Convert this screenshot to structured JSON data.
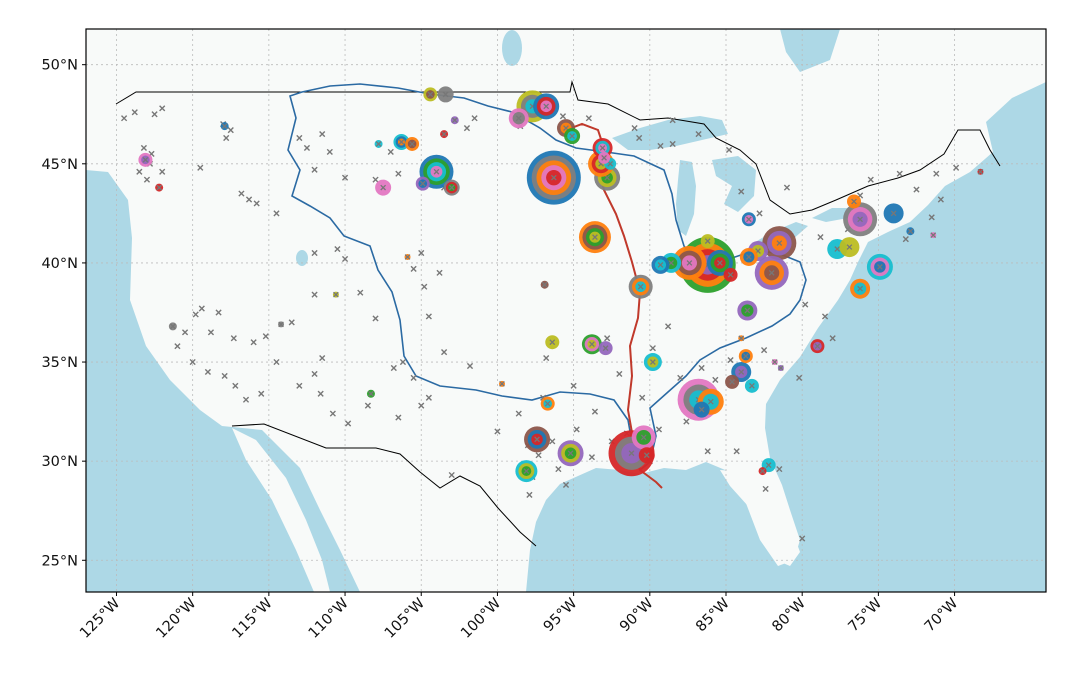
{
  "chart_data": {
    "type": "scatter",
    "title": "",
    "xlabel": "",
    "ylabel": "",
    "projection": "plate-carree",
    "xlim": [
      -127.0,
      -64.0
    ],
    "ylim": [
      23.4,
      51.8
    ],
    "grid": true,
    "x_ticks": [
      {
        "value": -125,
        "label": "125°W"
      },
      {
        "value": -120,
        "label": "120°W"
      },
      {
        "value": -115,
        "label": "115°W"
      },
      {
        "value": -110,
        "label": "110°W"
      },
      {
        "value": -105,
        "label": "105°W"
      },
      {
        "value": -100,
        "label": "100°W"
      },
      {
        "value": -95,
        "label": "95°W"
      },
      {
        "value": -90,
        "label": "90°W"
      },
      {
        "value": -85,
        "label": "85°W"
      },
      {
        "value": -80,
        "label": "80°W"
      },
      {
        "value": -75,
        "label": "75°W"
      },
      {
        "value": -70,
        "label": "70°W"
      }
    ],
    "y_ticks": [
      {
        "value": 50,
        "label": "50°N"
      },
      {
        "value": 45,
        "label": "45°N"
      },
      {
        "value": 40,
        "label": "40°N"
      },
      {
        "value": 35,
        "label": "35°N"
      },
      {
        "value": 30,
        "label": "30°N"
      },
      {
        "value": 25,
        "label": "25°N"
      }
    ],
    "colors": {
      "water": "#add8e6",
      "land": "#f8faf9",
      "basin_outline": "#2b6aa3",
      "river": "#c0392b",
      "border": "#000000",
      "grid": "#bbbbbb",
      "marker_x": "#777777",
      "palette": [
        "#1f77b4",
        "#ff7f0e",
        "#2ca02c",
        "#d62728",
        "#9467bd",
        "#8c564b",
        "#e377c2",
        "#7f7f7f",
        "#bcbd22",
        "#17becf"
      ]
    },
    "x_markers": [
      [
        -124.5,
        47.3
      ],
      [
        -123.8,
        47.6
      ],
      [
        -122.5,
        47.5
      ],
      [
        -122.0,
        47.8
      ],
      [
        -123.2,
        45.8
      ],
      [
        -122.7,
        45.5
      ],
      [
        -122.8,
        45.0
      ],
      [
        -123.5,
        44.6
      ],
      [
        -123.0,
        44.2
      ],
      [
        -122.0,
        44.6
      ],
      [
        -118.0,
        47.0
      ],
      [
        -117.5,
        46.7
      ],
      [
        -117.8,
        46.3
      ],
      [
        -119.5,
        44.8
      ],
      [
        -116.8,
        43.5
      ],
      [
        -116.3,
        43.2
      ],
      [
        -115.8,
        43.0
      ],
      [
        -114.5,
        42.5
      ],
      [
        -113.0,
        46.3
      ],
      [
        -112.5,
        45.8
      ],
      [
        -111.5,
        46.5
      ],
      [
        -111.0,
        45.6
      ],
      [
        -112.0,
        44.7
      ],
      [
        -110.0,
        44.3
      ],
      [
        -108.0,
        44.2
      ],
      [
        -107.0,
        45.6
      ],
      [
        -106.5,
        44.5
      ],
      [
        -104.5,
        44.2
      ],
      [
        -103.5,
        43.8
      ],
      [
        -102.0,
        46.8
      ],
      [
        -101.5,
        47.3
      ],
      [
        -98.5,
        46.9
      ],
      [
        -95.7,
        47.4
      ],
      [
        -94.0,
        47.3
      ],
      [
        -91.0,
        46.8
      ],
      [
        -88.5,
        47.2
      ],
      [
        -86.8,
        46.5
      ],
      [
        -89.3,
        45.9
      ],
      [
        -90.7,
        46.3
      ],
      [
        -88.5,
        46.0
      ],
      [
        -110.5,
        40.7
      ],
      [
        -110.0,
        40.2
      ],
      [
        -109.0,
        38.5
      ],
      [
        -108.0,
        37.2
      ],
      [
        -105.5,
        39.7
      ],
      [
        -104.8,
        38.8
      ],
      [
        -104.5,
        37.3
      ],
      [
        -105.0,
        40.5
      ],
      [
        -103.8,
        39.5
      ],
      [
        -112.0,
        40.5
      ],
      [
        -113.5,
        37.0
      ],
      [
        -112.0,
        38.4
      ],
      [
        -111.5,
        35.2
      ],
      [
        -112.0,
        34.4
      ],
      [
        -111.6,
        33.4
      ],
      [
        -110.8,
        32.4
      ],
      [
        -109.8,
        31.9
      ],
      [
        -108.5,
        32.8
      ],
      [
        -106.5,
        32.2
      ],
      [
        -105.0,
        32.8
      ],
      [
        -106.2,
        35.0
      ],
      [
        -105.5,
        34.2
      ],
      [
        -106.8,
        34.7
      ],
      [
        -104.5,
        33.2
      ],
      [
        -103.5,
        35.5
      ],
      [
        -119.8,
        37.4
      ],
      [
        -119.4,
        37.7
      ],
      [
        -118.3,
        37.5
      ],
      [
        -118.8,
        36.5
      ],
      [
        -117.3,
        36.2
      ],
      [
        -116.0,
        36.0
      ],
      [
        -115.2,
        36.3
      ],
      [
        -120.5,
        36.5
      ],
      [
        -121.0,
        35.8
      ],
      [
        -120.0,
        35.0
      ],
      [
        -119.0,
        34.5
      ],
      [
        -117.9,
        34.3
      ],
      [
        -117.2,
        33.8
      ],
      [
        -116.5,
        33.1
      ],
      [
        -115.5,
        33.4
      ],
      [
        -114.5,
        35.0
      ],
      [
        -113.0,
        33.8
      ],
      [
        -98.6,
        32.4
      ],
      [
        -97.0,
        33.2
      ],
      [
        -96.8,
        35.2
      ],
      [
        -95.0,
        33.8
      ],
      [
        -93.6,
        32.5
      ],
      [
        -91.5,
        31.4
      ],
      [
        -96.0,
        29.6
      ],
      [
        -95.5,
        28.8
      ],
      [
        -97.3,
        30.3
      ],
      [
        -98.0,
        30.8
      ],
      [
        -101.8,
        34.8
      ],
      [
        -103.0,
        29.3
      ],
      [
        -100.0,
        31.5
      ],
      [
        -88.8,
        36.8
      ],
      [
        -89.8,
        35.7
      ],
      [
        -90.5,
        33.2
      ],
      [
        -92.0,
        34.4
      ],
      [
        -92.8,
        36.2
      ],
      [
        -84.8,
        45.7
      ],
      [
        -84.0,
        43.6
      ],
      [
        -82.8,
        42.5
      ],
      [
        -81.0,
        43.8
      ],
      [
        -76.2,
        43.4
      ],
      [
        -75.5,
        44.2
      ],
      [
        -73.6,
        44.5
      ],
      [
        -72.5,
        43.7
      ],
      [
        -71.2,
        44.5
      ],
      [
        -69.9,
        44.8
      ],
      [
        -70.9,
        43.2
      ],
      [
        -71.5,
        42.3
      ],
      [
        -73.2,
        41.2
      ],
      [
        -77.0,
        41.7
      ],
      [
        -78.8,
        41.3
      ],
      [
        -79.8,
        37.9
      ],
      [
        -78.5,
        37.3
      ],
      [
        -78.0,
        36.2
      ],
      [
        -80.2,
        34.2
      ],
      [
        -82.5,
        35.6
      ],
      [
        -84.7,
        35.1
      ],
      [
        -85.7,
        34.1
      ],
      [
        -86.6,
        34.7
      ],
      [
        -88.0,
        34.2
      ],
      [
        -87.6,
        32.0
      ],
      [
        -81.5,
        29.6
      ],
      [
        -80.0,
        26.1
      ],
      [
        -82.4,
        28.6
      ],
      [
        -84.3,
        30.5
      ],
      [
        -86.2,
        30.5
      ],
      [
        -90.0,
        30.0
      ],
      [
        -89.4,
        31.6
      ],
      [
        -91.0,
        30.6
      ],
      [
        -92.5,
        31.0
      ],
      [
        -93.8,
        30.2
      ],
      [
        -94.8,
        31.6
      ],
      [
        -96.4,
        31.0
      ],
      [
        -97.7,
        29.2
      ],
      [
        -97.9,
        28.3
      ],
      [
        -98.4,
        29.6
      ]
    ],
    "sites": [
      {
        "lon": -96.3,
        "lat": 44.3,
        "r": 27,
        "ring": [
          "#1f77b4",
          "#7f7f7f",
          "#ff7f0e",
          "#e377c2",
          "#d62728"
        ]
      },
      {
        "lon": -97.7,
        "lat": 47.9,
        "r": 16,
        "ring": [
          "#bcbd22",
          "#7f7f7f",
          "#17becf"
        ]
      },
      {
        "lon": -96.8,
        "lat": 47.9,
        "r": 13,
        "ring": [
          "#1f77b4",
          "#d62728",
          "#e377c2"
        ]
      },
      {
        "lon": -98.6,
        "lat": 47.3,
        "r": 10,
        "ring": [
          "#e377c2",
          "#7f7f7f"
        ]
      },
      {
        "lon": -95.5,
        "lat": 46.8,
        "r": 9,
        "ring": [
          "#8c564b",
          "#ff7f0e"
        ]
      },
      {
        "lon": -95.1,
        "lat": 46.4,
        "r": 8,
        "ring": [
          "#2ca02c",
          "#17becf"
        ]
      },
      {
        "lon": -103.4,
        "lat": 48.5,
        "r": 8,
        "ring": [
          "#7f7f7f"
        ]
      },
      {
        "lon": -104.4,
        "lat": 48.5,
        "r": 7,
        "ring": [
          "#bcbd22",
          "#8c564b"
        ]
      },
      {
        "lon": -102.8,
        "lat": 47.2,
        "r": 4,
        "ring": [
          "#9467bd"
        ]
      },
      {
        "lon": -104.0,
        "lat": 44.6,
        "r": 17,
        "ring": [
          "#1f77b4",
          "#2ca02c",
          "#17becf",
          "#e377c2"
        ]
      },
      {
        "lon": -103.0,
        "lat": 43.8,
        "r": 8,
        "ring": [
          "#7f7f7f",
          "#d62728",
          "#2ca02c"
        ]
      },
      {
        "lon": -104.9,
        "lat": 44.0,
        "r": 7,
        "ring": [
          "#9467bd",
          "#1f77b4"
        ]
      },
      {
        "lon": -106.3,
        "lat": 46.1,
        "r": 8,
        "ring": [
          "#17becf",
          "#1f77b4",
          "#ff7f0e"
        ]
      },
      {
        "lon": -105.6,
        "lat": 46.0,
        "r": 7,
        "ring": [
          "#ff7f0e",
          "#8c564b"
        ]
      },
      {
        "lon": -107.8,
        "lat": 46.0,
        "r": 4,
        "ring": [
          "#17becf"
        ]
      },
      {
        "lon": -107.5,
        "lat": 43.8,
        "r": 8,
        "ring": [
          "#e377c2"
        ]
      },
      {
        "lon": -103.5,
        "lat": 46.5,
        "r": 4,
        "ring": [
          "#d62728"
        ]
      },
      {
        "lon": -123.1,
        "lat": 45.2,
        "r": 7,
        "ring": [
          "#e377c2",
          "#9467bd"
        ]
      },
      {
        "lon": -122.2,
        "lat": 43.8,
        "r": 4,
        "ring": [
          "#d62728"
        ]
      },
      {
        "lon": -117.9,
        "lat": 46.9,
        "r": 4,
        "ring": [
          "#1f77b4"
        ]
      },
      {
        "lon": -121.3,
        "lat": 36.8,
        "r": 4,
        "ring": [
          "#7f7f7f"
        ]
      },
      {
        "lon": -114.2,
        "lat": 36.9,
        "r": 3,
        "ring": [
          "#7f7f7f"
        ]
      },
      {
        "lon": -110.6,
        "lat": 38.4,
        "r": 3,
        "ring": [
          "#bcbd22"
        ]
      },
      {
        "lon": -105.9,
        "lat": 40.3,
        "r": 3,
        "ring": [
          "#ff7f0e"
        ]
      },
      {
        "lon": -108.3,
        "lat": 33.4,
        "r": 4,
        "ring": [
          "#2ca02c"
        ]
      },
      {
        "lon": -99.7,
        "lat": 33.9,
        "r": 3,
        "ring": [
          "#ff7f0e"
        ]
      },
      {
        "lon": -96.9,
        "lat": 38.9,
        "r": 4,
        "ring": [
          "#8c564b"
        ]
      },
      {
        "lon": -93.6,
        "lat": 41.3,
        "r": 16,
        "ring": [
          "#ff7f0e",
          "#8c564b",
          "#2ca02c",
          "#bcbd22"
        ]
      },
      {
        "lon": -92.8,
        "lat": 44.3,
        "r": 13,
        "ring": [
          "#7f7f7f",
          "#bcbd22",
          "#2ca02c"
        ]
      },
      {
        "lon": -93.2,
        "lat": 45.0,
        "r": 13,
        "ring": [
          "#ff7f0e",
          "#d62728",
          "#bcbd22"
        ]
      },
      {
        "lon": -93.1,
        "lat": 45.8,
        "r": 10,
        "ring": [
          "#d62728",
          "#17becf",
          "#e377c2"
        ]
      },
      {
        "lon": -92.6,
        "lat": 45.0,
        "r": 6,
        "ring": [
          "#17becf"
        ]
      },
      {
        "lon": -93.0,
        "lat": 45.3,
        "r": 6,
        "ring": [
          "#e377c2"
        ]
      },
      {
        "lon": -90.6,
        "lat": 38.8,
        "r": 12,
        "ring": [
          "#7f7f7f",
          "#ff7f0e",
          "#17becf"
        ]
      },
      {
        "lon": -89.8,
        "lat": 35.0,
        "r": 9,
        "ring": [
          "#17becf",
          "#bcbd22"
        ]
      },
      {
        "lon": -93.8,
        "lat": 35.9,
        "r": 10,
        "ring": [
          "#2ca02c",
          "#e377c2",
          "#bcbd22"
        ]
      },
      {
        "lon": -92.9,
        "lat": 35.7,
        "r": 7,
        "ring": [
          "#9467bd"
        ]
      },
      {
        "lon": -96.4,
        "lat": 36.0,
        "r": 7,
        "ring": [
          "#bcbd22"
        ]
      },
      {
        "lon": -96.7,
        "lat": 32.9,
        "r": 7,
        "ring": [
          "#ff7f0e",
          "#17becf"
        ]
      },
      {
        "lon": -97.4,
        "lat": 31.1,
        "r": 13,
        "ring": [
          "#8c564b",
          "#1f77b4",
          "#d62728"
        ]
      },
      {
        "lon": -95.2,
        "lat": 30.4,
        "r": 13,
        "ring": [
          "#9467bd",
          "#bcbd22",
          "#2ca02c"
        ]
      },
      {
        "lon": -98.1,
        "lat": 29.5,
        "r": 11,
        "ring": [
          "#17becf",
          "#bcbd22",
          "#2ca02c"
        ]
      },
      {
        "lon": -91.2,
        "lat": 30.4,
        "r": 23,
        "ring": [
          "#d62728",
          "#7f7f7f",
          "#9467bd"
        ]
      },
      {
        "lon": -90.4,
        "lat": 31.2,
        "r": 12,
        "ring": [
          "#e377c2",
          "#2ca02c"
        ]
      },
      {
        "lon": -90.2,
        "lat": 30.3,
        "r": 8,
        "ring": [
          "#d62728"
        ]
      },
      {
        "lon": -86.2,
        "lat": 39.9,
        "r": 28,
        "ring": [
          "#2ca02c",
          "#ff7f0e",
          "#d62728",
          "#9467bd"
        ]
      },
      {
        "lon": -87.4,
        "lat": 40.0,
        "r": 17,
        "ring": [
          "#ff7f0e",
          "#8c564b",
          "#e377c2"
        ]
      },
      {
        "lon": -85.4,
        "lat": 40.0,
        "r": 13,
        "ring": [
          "#1f77b4",
          "#2ca02c",
          "#d62728"
        ]
      },
      {
        "lon": -88.6,
        "lat": 40.0,
        "r": 10,
        "ring": [
          "#17becf",
          "#2ca02c"
        ]
      },
      {
        "lon": -89.3,
        "lat": 39.9,
        "r": 9,
        "ring": [
          "#1f77b4",
          "#17becf"
        ]
      },
      {
        "lon": -84.7,
        "lat": 39.4,
        "r": 7,
        "ring": [
          "#d62728"
        ]
      },
      {
        "lon": -86.2,
        "lat": 41.1,
        "r": 7,
        "ring": [
          "#bcbd22"
        ]
      },
      {
        "lon": -81.5,
        "lat": 41.0,
        "r": 17,
        "ring": [
          "#8c564b",
          "#9467bd",
          "#ff7f0e"
        ]
      },
      {
        "lon": -82.0,
        "lat": 39.5,
        "r": 17,
        "ring": [
          "#9467bd",
          "#ff7f0e",
          "#8c564b"
        ]
      },
      {
        "lon": -82.9,
        "lat": 40.6,
        "r": 10,
        "ring": [
          "#9467bd",
          "#bcbd22"
        ]
      },
      {
        "lon": -83.5,
        "lat": 40.3,
        "r": 9,
        "ring": [
          "#ff7f0e",
          "#1f77b4"
        ]
      },
      {
        "lon": -83.5,
        "lat": 42.2,
        "r": 7,
        "ring": [
          "#1f77b4",
          "#e377c2"
        ]
      },
      {
        "lon": -83.6,
        "lat": 37.6,
        "r": 10,
        "ring": [
          "#9467bd",
          "#2ca02c"
        ]
      },
      {
        "lon": -83.7,
        "lat": 35.3,
        "r": 7,
        "ring": [
          "#ff7f0e",
          "#1f77b4"
        ]
      },
      {
        "lon": -84.0,
        "lat": 34.5,
        "r": 10,
        "ring": [
          "#1f77b4",
          "#9467bd"
        ]
      },
      {
        "lon": -84.6,
        "lat": 34.0,
        "r": 7,
        "ring": [
          "#8c564b"
        ]
      },
      {
        "lon": -83.3,
        "lat": 33.8,
        "r": 7,
        "ring": [
          "#17becf"
        ]
      },
      {
        "lon": -84.0,
        "lat": 36.2,
        "r": 3,
        "ring": [
          "#ff7f0e"
        ]
      },
      {
        "lon": -86.8,
        "lat": 33.1,
        "r": 21,
        "ring": [
          "#e377c2",
          "#7f7f7f",
          "#17becf"
        ]
      },
      {
        "lon": -86.0,
        "lat": 33.0,
        "r": 13,
        "ring": [
          "#ff7f0e",
          "#17becf"
        ]
      },
      {
        "lon": -86.6,
        "lat": 32.6,
        "r": 8,
        "ring": [
          "#1f77b4"
        ]
      },
      {
        "lon": -82.2,
        "lat": 29.8,
        "r": 7,
        "ring": [
          "#17becf"
        ]
      },
      {
        "lon": -82.6,
        "lat": 29.5,
        "r": 4,
        "ring": [
          "#d62728"
        ]
      },
      {
        "lon": -81.8,
        "lat": 35.0,
        "r": 3,
        "ring": [
          "#e377c2"
        ]
      },
      {
        "lon": -81.4,
        "lat": 34.7,
        "r": 3,
        "ring": [
          "#9467bd"
        ]
      },
      {
        "lon": -79.0,
        "lat": 35.8,
        "r": 7,
        "ring": [
          "#d62728",
          "#9467bd"
        ]
      },
      {
        "lon": -76.2,
        "lat": 42.2,
        "r": 17,
        "ring": [
          "#7f7f7f",
          "#e377c2",
          "#9467bd"
        ]
      },
      {
        "lon": -74.0,
        "lat": 42.5,
        "r": 10,
        "ring": [
          "#1f77b4"
        ]
      },
      {
        "lon": -74.9,
        "lat": 39.8,
        "r": 13,
        "ring": [
          "#17becf",
          "#e377c2",
          "#1f77b4"
        ]
      },
      {
        "lon": -76.2,
        "lat": 38.7,
        "r": 10,
        "ring": [
          "#ff7f0e",
          "#17becf"
        ]
      },
      {
        "lon": -77.7,
        "lat": 40.7,
        "r": 10,
        "ring": [
          "#17becf"
        ]
      },
      {
        "lon": -76.9,
        "lat": 40.8,
        "r": 10,
        "ring": [
          "#bcbd22"
        ]
      },
      {
        "lon": -76.6,
        "lat": 43.1,
        "r": 7,
        "ring": [
          "#ff7f0e"
        ]
      },
      {
        "lon": -72.9,
        "lat": 41.6,
        "r": 4,
        "ring": [
          "#1f77b4"
        ]
      },
      {
        "lon": -71.4,
        "lat": 41.4,
        "r": 3,
        "ring": [
          "#e377c2"
        ]
      },
      {
        "lon": -68.3,
        "lat": 44.6,
        "r": 3,
        "ring": [
          "#d62728"
        ]
      }
    ]
  }
}
